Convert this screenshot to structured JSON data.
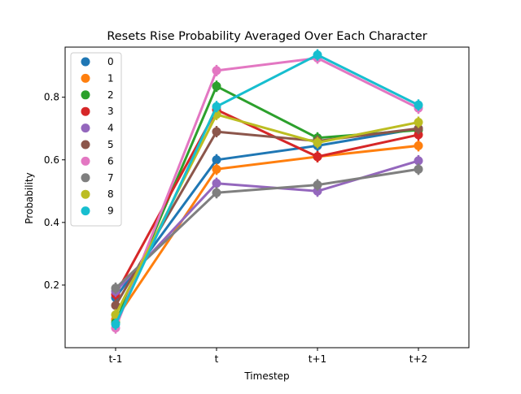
{
  "chart_data": {
    "type": "line",
    "title": "Resets Rise Probability Averaged Over Each Character",
    "xlabel": "Timestep",
    "ylabel": "Probability",
    "categories": [
      "t-1",
      "t",
      "t+1",
      "t+2"
    ],
    "ylim": [
      0.0,
      0.96
    ],
    "yticks": [
      0.2,
      0.4,
      0.6,
      0.8
    ],
    "ytick_labels": [
      "0.2",
      "0.4",
      "0.6",
      "0.8"
    ],
    "grid": false,
    "legend_position": "top-left",
    "series": [
      {
        "name": "0",
        "color": "#1f77b4",
        "values": [
          0.16,
          0.6,
          0.645,
          0.7
        ]
      },
      {
        "name": "1",
        "color": "#ff7f0e",
        "values": [
          0.09,
          0.57,
          0.61,
          0.645
        ]
      },
      {
        "name": "2",
        "color": "#2ca02c",
        "values": [
          0.08,
          0.835,
          0.67,
          0.695
        ]
      },
      {
        "name": "3",
        "color": "#d62728",
        "values": [
          0.17,
          0.76,
          0.61,
          0.68
        ]
      },
      {
        "name": "4",
        "color": "#9467bd",
        "values": [
          0.18,
          0.525,
          0.5,
          0.597
        ]
      },
      {
        "name": "5",
        "color": "#8c564b",
        "values": [
          0.135,
          0.69,
          0.66,
          0.7
        ]
      },
      {
        "name": "6",
        "color": "#e377c2",
        "values": [
          0.063,
          0.885,
          0.925,
          0.765
        ]
      },
      {
        "name": "7",
        "color": "#7f7f7f",
        "values": [
          0.19,
          0.495,
          0.52,
          0.57
        ]
      },
      {
        "name": "8",
        "color": "#bcbd22",
        "values": [
          0.105,
          0.745,
          0.655,
          0.72
        ]
      },
      {
        "name": "9",
        "color": "#17becf",
        "values": [
          0.075,
          0.77,
          0.935,
          0.775
        ]
      }
    ]
  }
}
